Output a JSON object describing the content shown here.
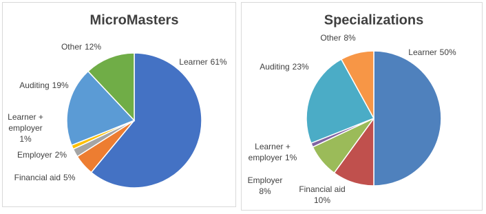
{
  "chart_data": [
    {
      "type": "pie",
      "title": "MicroMasters",
      "categories": [
        "Learner",
        "Financial aid",
        "Employer",
        "Learner + employer",
        "Auditing",
        "Other"
      ],
      "values": [
        61,
        5,
        2,
        1,
        19,
        12
      ],
      "value_labels": [
        "61%",
        "5%",
        "2%",
        "1%",
        "19%",
        "12%"
      ],
      "colors": [
        "#4472c4",
        "#ed7d31",
        "#a5a5a5",
        "#ffc000",
        "#5b9bd5",
        "#70ad47"
      ]
    },
    {
      "type": "pie",
      "title": "Specializations",
      "categories": [
        "Learner",
        "Financial aid",
        "Employer",
        "Learner + employer",
        "Auditing",
        "Other"
      ],
      "values": [
        50,
        10,
        8,
        1,
        23,
        8
      ],
      "value_labels": [
        "50%",
        "10%",
        "8%",
        "1%",
        "23%",
        "8%"
      ],
      "colors": [
        "#4f81bd",
        "#c0504d",
        "#9bbb59",
        "#8064a2",
        "#4bacc6",
        "#f79646"
      ]
    }
  ]
}
